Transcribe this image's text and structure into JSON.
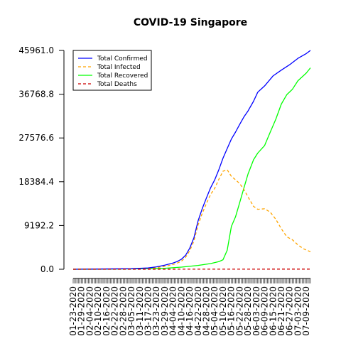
{
  "chart_data": {
    "type": "line",
    "title": "COVID-19 Singapore",
    "xlabel": "",
    "ylabel": "",
    "grid": false,
    "legend_position": "top-left",
    "y_ticks": [
      "0.0",
      "9192.2",
      "18384.4",
      "27576.6",
      "36768.8",
      "45961.0"
    ],
    "ylim": [
      0,
      45961
    ],
    "x_ticks": [
      "01-23-2020",
      "01-29-2020",
      "02-04-2020",
      "02-10-2020",
      "02-16-2020",
      "02-22-2020",
      "02-28-2020",
      "03-05-2020",
      "03-11-2020",
      "03-17-2020",
      "03-23-2020",
      "03-29-2020",
      "04-04-2020",
      "04-10-2020",
      "04-16-2020",
      "04-22-2020",
      "04-28-2020",
      "05-04-2020",
      "05-10-2020",
      "05-16-2020",
      "05-22-2020",
      "05-28-2020",
      "06-03-2020",
      "06-09-2020",
      "06-15-2020",
      "06-21-2020",
      "06-27-2020",
      "07-03-2020",
      "07-09-2020"
    ],
    "x_range": [
      "01-23-2020",
      "07-12-2020"
    ],
    "series": [
      {
        "name": "Total Confirmed",
        "color": "#0000ff",
        "dash": "solid",
        "points": [
          [
            "01-23-2020",
            0
          ],
          [
            "02-10-2020",
            45
          ],
          [
            "03-05-2020",
            117
          ],
          [
            "03-17-2020",
            266
          ],
          [
            "03-23-2020",
            509
          ],
          [
            "03-29-2020",
            844
          ],
          [
            "04-04-2020",
            1309
          ],
          [
            "04-07-2020",
            1623
          ],
          [
            "04-10-2020",
            2108
          ],
          [
            "04-13-2020",
            2918
          ],
          [
            "04-16-2020",
            4427
          ],
          [
            "04-19-2020",
            6588
          ],
          [
            "04-22-2020",
            10141
          ],
          [
            "04-25-2020",
            12693
          ],
          [
            "04-28-2020",
            14951
          ],
          [
            "05-01-2020",
            17101
          ],
          [
            "05-04-2020",
            18778
          ],
          [
            "05-07-2020",
            20939
          ],
          [
            "05-10-2020",
            23336
          ],
          [
            "05-13-2020",
            25346
          ],
          [
            "05-16-2020",
            27356
          ],
          [
            "05-19-2020",
            28794
          ],
          [
            "05-22-2020",
            30426
          ],
          [
            "05-25-2020",
            31960
          ],
          [
            "05-28-2020",
            33249
          ],
          [
            "06-01-2020",
            35292
          ],
          [
            "06-04-2020",
            37183
          ],
          [
            "06-09-2020",
            38514
          ],
          [
            "06-15-2020",
            40604
          ],
          [
            "06-21-2020",
            41833
          ],
          [
            "06-27-2020",
            42955
          ],
          [
            "07-03-2020",
            44310
          ],
          [
            "07-09-2020",
            45298
          ],
          [
            "07-12-2020",
            45961
          ]
        ]
      },
      {
        "name": "Total Infected",
        "color": "#ffa500",
        "dash": "dashed",
        "points": [
          [
            "01-23-2020",
            0
          ],
          [
            "02-10-2020",
            40
          ],
          [
            "03-05-2020",
            60
          ],
          [
            "03-17-2020",
            150
          ],
          [
            "03-23-2020",
            350
          ],
          [
            "03-29-2020",
            600
          ],
          [
            "04-04-2020",
            1000
          ],
          [
            "04-07-2020",
            1300
          ],
          [
            "04-10-2020",
            1700
          ],
          [
            "04-13-2020",
            2500
          ],
          [
            "04-16-2020",
            3900
          ],
          [
            "04-19-2020",
            5900
          ],
          [
            "04-22-2020",
            9300
          ],
          [
            "04-25-2020",
            11700
          ],
          [
            "04-28-2020",
            13800
          ],
          [
            "05-01-2020",
            15700
          ],
          [
            "05-04-2020",
            17000
          ],
          [
            "05-07-2020",
            18900
          ],
          [
            "05-10-2020",
            20600
          ],
          [
            "05-13-2020",
            20900
          ],
          [
            "05-16-2020",
            19500
          ],
          [
            "05-19-2020",
            18800
          ],
          [
            "05-22-2020",
            18000
          ],
          [
            "05-25-2020",
            16800
          ],
          [
            "05-28-2020",
            15200
          ],
          [
            "06-01-2020",
            13200
          ],
          [
            "06-04-2020",
            12600
          ],
          [
            "06-09-2020",
            12700
          ],
          [
            "06-13-2020",
            12000
          ],
          [
            "06-17-2020",
            10500
          ],
          [
            "06-21-2020",
            8500
          ],
          [
            "06-25-2020",
            6800
          ],
          [
            "06-29-2020",
            6200
          ],
          [
            "07-03-2020",
            5100
          ],
          [
            "07-07-2020",
            4300
          ],
          [
            "07-11-2020",
            3800
          ],
          [
            "07-12-2020",
            3700
          ]
        ]
      },
      {
        "name": "Total Recovered",
        "color": "#00ff00",
        "dash": "solid",
        "points": [
          [
            "01-23-2020",
            0
          ],
          [
            "02-16-2020",
            20
          ],
          [
            "03-05-2020",
            80
          ],
          [
            "03-17-2020",
            120
          ],
          [
            "03-29-2020",
            200
          ],
          [
            "04-10-2020",
            450
          ],
          [
            "04-22-2020",
            800
          ],
          [
            "05-01-2020",
            1200
          ],
          [
            "05-07-2020",
            1600
          ],
          [
            "05-10-2020",
            2000
          ],
          [
            "05-13-2020",
            4000
          ],
          [
            "05-16-2020",
            9000
          ],
          [
            "05-19-2020",
            11000
          ],
          [
            "05-22-2020",
            14000
          ],
          [
            "05-25-2020",
            17000
          ],
          [
            "05-28-2020",
            20000
          ],
          [
            "06-01-2020",
            23000
          ],
          [
            "06-04-2020",
            24400
          ],
          [
            "06-09-2020",
            26000
          ],
          [
            "06-13-2020",
            28800
          ],
          [
            "06-17-2020",
            31500
          ],
          [
            "06-21-2020",
            34700
          ],
          [
            "06-25-2020",
            36700
          ],
          [
            "06-29-2020",
            37800
          ],
          [
            "07-03-2020",
            39600
          ],
          [
            "07-09-2020",
            41200
          ],
          [
            "07-12-2020",
            42300
          ]
        ]
      },
      {
        "name": "Total Deaths",
        "color": "#cc0000",
        "dash": "dashed",
        "points": [
          [
            "01-23-2020",
            0
          ],
          [
            "07-12-2020",
            26
          ]
        ]
      }
    ]
  }
}
